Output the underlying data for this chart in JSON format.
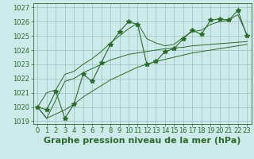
{
  "xlabel": "Graphe pression niveau de la mer (hPa)",
  "xlim": [
    -0.5,
    23.5
  ],
  "ylim": [
    1018.8,
    1027.3
  ],
  "yticks": [
    1019,
    1020,
    1021,
    1022,
    1023,
    1024,
    1025,
    1026,
    1027
  ],
  "xticks": [
    0,
    1,
    2,
    3,
    4,
    5,
    6,
    7,
    8,
    9,
    10,
    11,
    12,
    13,
    14,
    15,
    16,
    17,
    18,
    19,
    20,
    21,
    22,
    23
  ],
  "x": [
    0,
    1,
    2,
    3,
    4,
    5,
    6,
    7,
    8,
    9,
    10,
    11,
    12,
    13,
    14,
    15,
    16,
    17,
    18,
    19,
    20,
    21,
    22,
    23
  ],
  "y_main": [
    1020.0,
    1019.8,
    1021.1,
    1019.2,
    1020.2,
    1022.3,
    1021.8,
    1023.1,
    1024.4,
    1025.3,
    1026.0,
    1025.8,
    1023.0,
    1023.2,
    1023.9,
    1024.1,
    1024.8,
    1025.4,
    1025.1,
    1026.1,
    1026.2,
    1026.1,
    1026.8,
    1025.0
  ],
  "y_line1": [
    1020.0,
    1019.2,
    1020.5,
    1021.8,
    1022.0,
    1022.4,
    1022.7,
    1023.0,
    1023.3,
    1023.5,
    1023.7,
    1023.8,
    1023.9,
    1024.0,
    1024.1,
    1024.15,
    1024.2,
    1024.3,
    1024.35,
    1024.4,
    1024.45,
    1024.5,
    1024.55,
    1024.6
  ],
  "y_line2": [
    1020.0,
    1019.2,
    1019.5,
    1019.8,
    1020.2,
    1020.7,
    1021.1,
    1021.5,
    1021.9,
    1022.2,
    1022.5,
    1022.8,
    1023.0,
    1023.2,
    1023.35,
    1023.5,
    1023.65,
    1023.8,
    1023.9,
    1024.0,
    1024.1,
    1024.2,
    1024.3,
    1024.4
  ],
  "y_line3": [
    1020.0,
    1021.0,
    1021.2,
    1022.3,
    1022.5,
    1023.0,
    1023.4,
    1023.9,
    1024.5,
    1025.0,
    1025.5,
    1025.9,
    1024.8,
    1024.5,
    1024.3,
    1024.4,
    1024.9,
    1025.3,
    1025.4,
    1025.8,
    1026.0,
    1026.1,
    1026.5,
    1025.1
  ],
  "line_color": "#2d6a2d",
  "bg_color": "#cceaea",
  "grid_color": "#9dbdbd",
  "marker": "*",
  "marker_size": 4,
  "tick_fontsize": 6,
  "xlabel_fontsize": 8
}
